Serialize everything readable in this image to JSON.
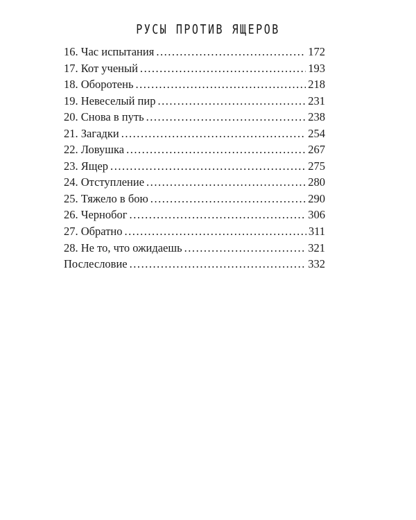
{
  "header": {
    "title": "Русы против ящеров"
  },
  "toc": [
    {
      "label": "16. Час испытания",
      "page": "172"
    },
    {
      "label": "17. Кот ученый",
      "page": "193"
    },
    {
      "label": "18. Оборотень",
      "page": "218"
    },
    {
      "label": "19. Невеселый пир",
      "page": "231"
    },
    {
      "label": "20. Снова в путь",
      "page": "238"
    },
    {
      "label": "21. Загадки",
      "page": "254"
    },
    {
      "label": "22. Ловушка",
      "page": "267"
    },
    {
      "label": "23. Ящер",
      "page": "275"
    },
    {
      "label": "24. Отступление",
      "page": "280"
    },
    {
      "label": "25. Тяжело в бою",
      "page": "290"
    },
    {
      "label": "26. Чернобог",
      "page": "306"
    },
    {
      "label": "27. Обратно",
      "page": "311"
    },
    {
      "label": "28. Не то, что ожидаешь",
      "page": "321"
    },
    {
      "label": "Послесловие",
      "page": "332"
    }
  ]
}
